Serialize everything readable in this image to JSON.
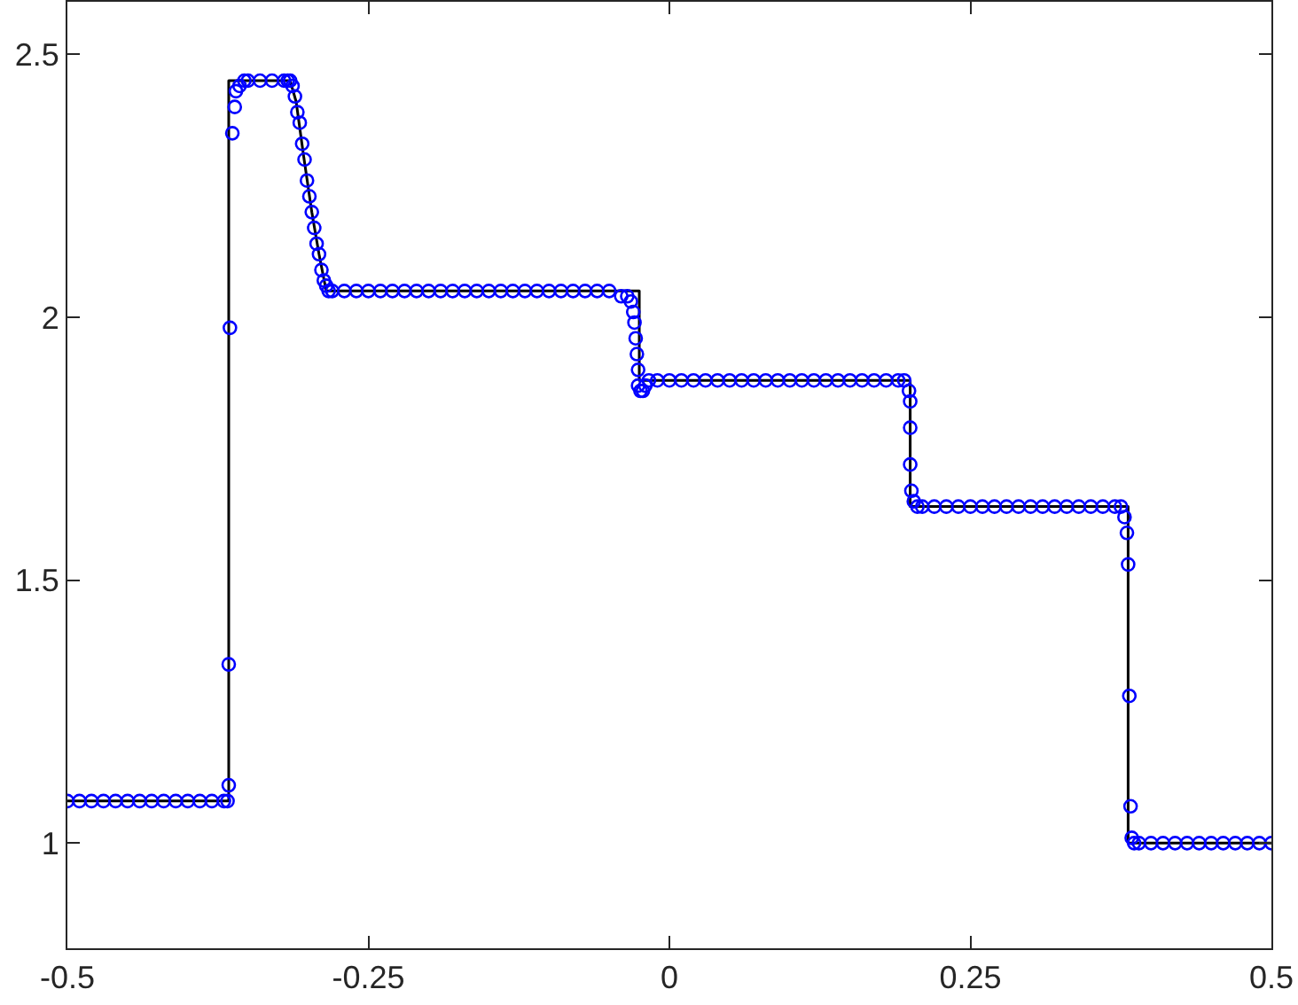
{
  "chart_data": {
    "type": "line",
    "xlim": [
      -0.5,
      0.5
    ],
    "ylim": [
      0.8,
      2.6
    ],
    "xticks": [
      -0.5,
      -0.25,
      0,
      0.25,
      0.5
    ],
    "yticks": [
      1,
      1.5,
      2,
      2.5
    ],
    "series": [
      {
        "color": "#000000",
        "x": [
          -0.5,
          -0.366,
          -0.366,
          -0.315,
          -0.31,
          -0.304,
          -0.297,
          -0.291,
          -0.285,
          -0.025,
          -0.025,
          0.2,
          0.2,
          0.381,
          0.381,
          0.5
        ],
        "values": [
          1.08,
          1.08,
          2.45,
          2.45,
          2.41,
          2.31,
          2.2,
          2.12,
          2.05,
          2.05,
          1.88,
          1.88,
          1.64,
          1.64,
          1,
          1
        ]
      },
      {
        "type": "scatter",
        "color": "#0000ff",
        "marker": "circle",
        "x": [
          -0.5,
          -0.49,
          -0.48,
          -0.47,
          -0.46,
          -0.45,
          -0.44,
          -0.43,
          -0.42,
          -0.41,
          -0.4,
          -0.39,
          -0.38,
          -0.37,
          -0.367,
          -0.366,
          -0.366,
          -0.365,
          -0.363,
          -0.361,
          -0.36,
          -0.357,
          -0.353,
          -0.35,
          -0.34,
          -0.33,
          -0.32,
          -0.317,
          -0.315,
          -0.313,
          -0.311,
          -0.309,
          -0.307,
          -0.305,
          -0.303,
          -0.301,
          -0.299,
          -0.297,
          -0.295,
          -0.293,
          -0.291,
          -0.289,
          -0.287,
          -0.285,
          -0.283,
          -0.28,
          -0.27,
          -0.26,
          -0.25,
          -0.24,
          -0.23,
          -0.22,
          -0.21,
          -0.2,
          -0.19,
          -0.18,
          -0.17,
          -0.16,
          -0.15,
          -0.14,
          -0.13,
          -0.12,
          -0.11,
          -0.1,
          -0.09,
          -0.08,
          -0.07,
          -0.06,
          -0.05,
          -0.04,
          -0.035,
          -0.032,
          -0.03,
          -0.029,
          -0.028,
          -0.027,
          -0.026,
          -0.026,
          -0.024,
          -0.022,
          -0.02,
          -0.017,
          -0.01,
          0,
          0.01,
          0.02,
          0.03,
          0.04,
          0.05,
          0.06,
          0.07,
          0.08,
          0.09,
          0.1,
          0.11,
          0.12,
          0.13,
          0.14,
          0.15,
          0.16,
          0.17,
          0.18,
          0.19,
          0.195,
          0.199,
          0.2,
          0.2,
          0.2,
          0.201,
          0.203,
          0.206,
          0.21,
          0.22,
          0.23,
          0.24,
          0.25,
          0.26,
          0.27,
          0.28,
          0.29,
          0.3,
          0.31,
          0.32,
          0.33,
          0.34,
          0.35,
          0.36,
          0.37,
          0.375,
          0.378,
          0.38,
          0.381,
          0.382,
          0.383,
          0.384,
          0.386,
          0.39,
          0.4,
          0.41,
          0.42,
          0.43,
          0.44,
          0.45,
          0.46,
          0.47,
          0.48,
          0.49,
          0.5
        ],
        "values": [
          1.08,
          1.08,
          1.08,
          1.08,
          1.08,
          1.08,
          1.08,
          1.08,
          1.08,
          1.08,
          1.08,
          1.08,
          1.08,
          1.08,
          1.08,
          1.11,
          1.34,
          1.98,
          2.35,
          2.4,
          2.43,
          2.44,
          2.45,
          2.45,
          2.45,
          2.45,
          2.45,
          2.45,
          2.45,
          2.44,
          2.42,
          2.39,
          2.37,
          2.33,
          2.3,
          2.26,
          2.23,
          2.2,
          2.17,
          2.14,
          2.12,
          2.09,
          2.07,
          2.06,
          2.05,
          2.05,
          2.05,
          2.05,
          2.05,
          2.05,
          2.05,
          2.05,
          2.05,
          2.05,
          2.05,
          2.05,
          2.05,
          2.05,
          2.05,
          2.05,
          2.05,
          2.05,
          2.05,
          2.05,
          2.05,
          2.05,
          2.05,
          2.05,
          2.05,
          2.04,
          2.04,
          2.03,
          2.01,
          1.99,
          1.96,
          1.93,
          1.9,
          1.87,
          1.86,
          1.86,
          1.87,
          1.88,
          1.88,
          1.88,
          1.88,
          1.88,
          1.88,
          1.88,
          1.88,
          1.88,
          1.88,
          1.88,
          1.88,
          1.88,
          1.88,
          1.88,
          1.88,
          1.88,
          1.88,
          1.88,
          1.88,
          1.88,
          1.88,
          1.88,
          1.86,
          1.84,
          1.79,
          1.72,
          1.67,
          1.65,
          1.64,
          1.64,
          1.64,
          1.64,
          1.64,
          1.64,
          1.64,
          1.64,
          1.64,
          1.64,
          1.64,
          1.64,
          1.64,
          1.64,
          1.64,
          1.64,
          1.64,
          1.64,
          1.64,
          1.62,
          1.59,
          1.53,
          1.28,
          1.07,
          1.01,
          1,
          1,
          1,
          1,
          1,
          1,
          1,
          1,
          1,
          1,
          1,
          1,
          1
        ]
      }
    ]
  }
}
